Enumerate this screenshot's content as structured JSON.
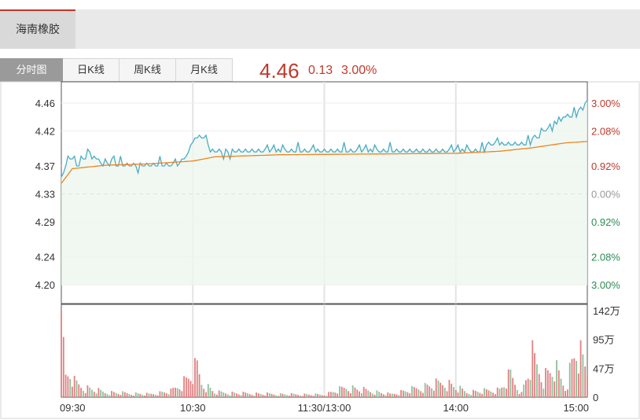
{
  "stock": {
    "name": "海南橡胶"
  },
  "tabs": [
    "分时图",
    "日K线",
    "周K线",
    "月K线"
  ],
  "active_tab": 0,
  "quote": {
    "price": "4.46",
    "change": "0.13",
    "percent": "3.00%"
  },
  "colors": {
    "up": "#c0392b",
    "down": "#2e8b57",
    "price_line": "#4bacc6",
    "avg_line": "#f0821e",
    "tab_active": "#9a9a9a"
  },
  "chart_data": {
    "type": "line",
    "title": "",
    "prev_close": 4.33,
    "price_ylim": [
      4.2,
      4.46
    ],
    "price_ticks": [
      "4.46",
      "4.42",
      "4.37",
      "4.33",
      "4.29",
      "4.24",
      "4.20"
    ],
    "pct_ticks": [
      "3.00%",
      "2.08%",
      "0.92%",
      "0.00%",
      "0.92%",
      "2.08%",
      "3.00%"
    ],
    "volume_ticks": [
      "142万",
      "95万",
      "47万",
      "0"
    ],
    "volume_max": 142,
    "time_labels": [
      "09:30",
      "10:30",
      "11:30/13:00",
      "14:00",
      "15:00"
    ],
    "price_anchors": [
      [
        0,
        4.35
      ],
      [
        3,
        4.38
      ],
      [
        8,
        4.375
      ],
      [
        12,
        4.385
      ],
      [
        18,
        4.372
      ],
      [
        24,
        4.377
      ],
      [
        30,
        4.37
      ],
      [
        35,
        4.366
      ],
      [
        42,
        4.373
      ],
      [
        50,
        4.37
      ],
      [
        55,
        4.374
      ],
      [
        58,
        4.388
      ],
      [
        62,
        4.412
      ],
      [
        66,
        4.405
      ],
      [
        68,
        4.392
      ],
      [
        72,
        4.386
      ],
      [
        80,
        4.39
      ],
      [
        90,
        4.392
      ],
      [
        100,
        4.393
      ],
      [
        110,
        4.392
      ],
      [
        120,
        4.391
      ],
      [
        130,
        4.392
      ],
      [
        140,
        4.393
      ],
      [
        150,
        4.392
      ],
      [
        160,
        4.391
      ],
      [
        170,
        4.391
      ],
      [
        180,
        4.395
      ],
      [
        190,
        4.392
      ],
      [
        200,
        4.403
      ],
      [
        210,
        4.4
      ],
      [
        215,
        4.405
      ],
      [
        220,
        4.42
      ],
      [
        225,
        4.43
      ],
      [
        230,
        4.44
      ],
      [
        235,
        4.445
      ],
      [
        240,
        4.46
      ]
    ],
    "avg_anchors": [
      [
        0,
        4.345
      ],
      [
        5,
        4.366
      ],
      [
        20,
        4.371
      ],
      [
        40,
        4.373
      ],
      [
        60,
        4.377
      ],
      [
        70,
        4.383
      ],
      [
        100,
        4.386
      ],
      [
        140,
        4.387
      ],
      [
        180,
        4.388
      ],
      [
        200,
        4.391
      ],
      [
        215,
        4.396
      ],
      [
        230,
        4.403
      ],
      [
        240,
        4.405
      ]
    ],
    "volume_anchors": [
      [
        0,
        142
      ],
      [
        2,
        40
      ],
      [
        4,
        50
      ],
      [
        6,
        30
      ],
      [
        10,
        20
      ],
      [
        15,
        15
      ],
      [
        20,
        10
      ],
      [
        30,
        8
      ],
      [
        40,
        6
      ],
      [
        50,
        12
      ],
      [
        57,
        35
      ],
      [
        59,
        45
      ],
      [
        62,
        60
      ],
      [
        64,
        30
      ],
      [
        70,
        10
      ],
      [
        80,
        8
      ],
      [
        100,
        6
      ],
      [
        120,
        5
      ],
      [
        130,
        20
      ],
      [
        150,
        6
      ],
      [
        175,
        30
      ],
      [
        185,
        10
      ],
      [
        200,
        15
      ],
      [
        205,
        45
      ],
      [
        210,
        8
      ],
      [
        215,
        80
      ],
      [
        220,
        40
      ],
      [
        225,
        60
      ],
      [
        230,
        20
      ],
      [
        235,
        100
      ],
      [
        240,
        50
      ]
    ]
  }
}
